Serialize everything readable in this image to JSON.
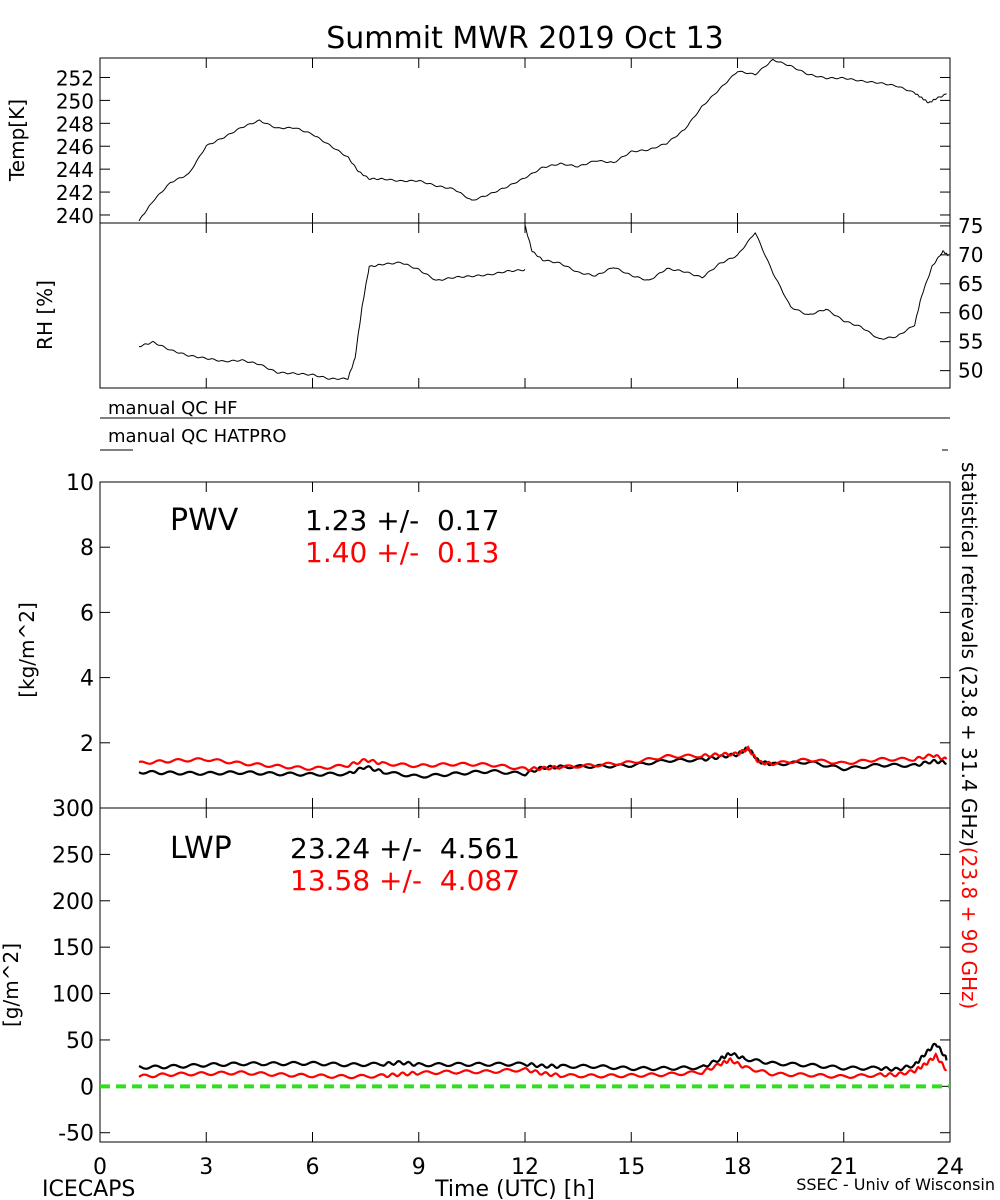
{
  "title": "Summit MWR 2019 Oct 13",
  "footer": {
    "left": "ICECAPS",
    "center": "Time (UTC) [h]",
    "right": "SSEC - Univ of Wisconsin"
  },
  "side_label": {
    "black": "statistical retrievals (23.8 + 31.4 GHz)",
    "red": "(23.8 + 90 GHz)"
  },
  "colors": {
    "primary": "#000000",
    "secondary": "#ff0000",
    "zero_line": "#33dd22"
  },
  "qc": {
    "hf_label": "manual QC HF",
    "hatpro_label": "manual QC HATPRO"
  },
  "chart_data": [
    {
      "id": "temp",
      "type": "line",
      "ylabel": "Temp[K]",
      "xlim": [
        0,
        24
      ],
      "ylim": [
        239.3,
        253.7
      ],
      "yticks": [
        240,
        242,
        244,
        246,
        248,
        250,
        252
      ],
      "x": [
        1.1,
        1.5,
        2.0,
        2.5,
        3.0,
        3.5,
        4.0,
        4.5,
        5.0,
        5.5,
        6.0,
        6.5,
        7.0,
        7.3,
        7.6,
        8.0,
        8.5,
        9.0,
        9.5,
        10.0,
        10.5,
        11.0,
        11.5,
        12.0,
        12.5,
        13.0,
        13.5,
        14.0,
        14.5,
        15.0,
        15.5,
        16.0,
        16.5,
        17.0,
        17.5,
        18.0,
        18.5,
        19.0,
        19.5,
        20.0,
        20.5,
        21.0,
        21.5,
        22.0,
        22.5,
        23.0,
        23.2,
        23.4,
        23.6,
        23.9
      ],
      "y": [
        239.5,
        241.2,
        242.8,
        243.5,
        246.0,
        246.8,
        247.7,
        248.3,
        247.6,
        247.6,
        247.0,
        246.0,
        245.0,
        243.8,
        243.2,
        243.2,
        243.0,
        243.0,
        242.5,
        242.2,
        241.2,
        241.8,
        242.5,
        243.3,
        244.2,
        244.5,
        244.2,
        244.7,
        244.5,
        245.5,
        245.7,
        246.3,
        247.5,
        249.5,
        251.0,
        252.5,
        252.2,
        253.5,
        253.0,
        252.3,
        252.0,
        252.0,
        251.7,
        251.5,
        251.2,
        250.6,
        250.2,
        249.8,
        250.2,
        250.6
      ]
    },
    {
      "id": "rh",
      "type": "line",
      "ylabel": "RH [%]",
      "xlim": [
        0,
        24
      ],
      "ylim": [
        47,
        75.5
      ],
      "yticks": [
        50,
        55,
        60,
        65,
        70,
        75
      ],
      "segments": [
        {
          "x": [
            1.1,
            1.5,
            2.0,
            2.5,
            3.0,
            3.5,
            4.0,
            4.5,
            5.0,
            5.5,
            6.0,
            6.5,
            7.0,
            7.2,
            7.4,
            7.6,
            8.0,
            8.5,
            9.0,
            9.5,
            10.0,
            10.5,
            11.0,
            11.5,
            12.0
          ],
          "y": [
            54.3,
            55.0,
            53.5,
            52.5,
            52.0,
            51.5,
            51.8,
            51.2,
            49.8,
            49.6,
            49.3,
            48.5,
            48.5,
            52.0,
            61.0,
            68.0,
            68.5,
            68.8,
            67.5,
            65.5,
            66.0,
            66.2,
            66.5,
            67.2,
            67.5
          ]
        },
        {
          "x": [
            12.0,
            12.2,
            12.5,
            13.0,
            13.5,
            14.0,
            14.5,
            15.0,
            15.5,
            16.0,
            16.5,
            17.0,
            17.5,
            18.0,
            18.5,
            19.0,
            19.5,
            20.0,
            20.5,
            21.0,
            21.5,
            22.0,
            22.5,
            23.0,
            23.2,
            23.5,
            23.8,
            23.95
          ],
          "y": [
            75.0,
            70.5,
            69.0,
            68.5,
            67.0,
            66.5,
            68.0,
            66.5,
            65.5,
            67.5,
            67.0,
            66.0,
            68.5,
            70.0,
            74.0,
            67.0,
            61.0,
            59.5,
            60.5,
            58.5,
            57.5,
            55.5,
            56.0,
            58.0,
            63.0,
            68.0,
            70.5,
            69.8
          ]
        }
      ]
    },
    {
      "id": "pwv",
      "type": "line",
      "label": "PWV",
      "ylabel": "[kg/m^2]",
      "xlim": [
        0,
        24
      ],
      "ylim": [
        0,
        10
      ],
      "yticks": [
        0,
        2,
        4,
        6,
        8,
        10
      ],
      "stats": [
        {
          "text": "1.23 +/-  0.17",
          "color": "#000000"
        },
        {
          "text": "1.40 +/-  0.13",
          "color": "#ff0000"
        }
      ],
      "series": [
        {
          "color": "#000000",
          "x": [
            1.1,
            2,
            3,
            4,
            5,
            6,
            7,
            7.5,
            8,
            9,
            10,
            11,
            12,
            12.5,
            13,
            14,
            15,
            16,
            17,
            17.5,
            18,
            18.3,
            18.6,
            19,
            20,
            21,
            22,
            23,
            23.5,
            23.9
          ],
          "y": [
            1.15,
            1.1,
            1.05,
            1.05,
            1.0,
            1.0,
            1.05,
            1.3,
            1.15,
            1.0,
            1.05,
            1.1,
            1.0,
            1.2,
            1.25,
            1.3,
            1.35,
            1.5,
            1.5,
            1.55,
            1.6,
            1.8,
            1.4,
            1.35,
            1.45,
            1.25,
            1.35,
            1.3,
            1.4,
            1.35
          ]
        },
        {
          "color": "#ff0000",
          "x": [
            1.1,
            2,
            3,
            4,
            5,
            6,
            7,
            7.5,
            8,
            9,
            10,
            11,
            12,
            12.5,
            13,
            14,
            15,
            16,
            17,
            17.5,
            18,
            18.3,
            18.6,
            19,
            20,
            21,
            22,
            23,
            23.5,
            23.9
          ],
          "y": [
            1.35,
            1.4,
            1.45,
            1.35,
            1.3,
            1.25,
            1.35,
            1.5,
            1.35,
            1.25,
            1.3,
            1.3,
            1.2,
            1.25,
            1.3,
            1.35,
            1.4,
            1.55,
            1.55,
            1.6,
            1.65,
            1.85,
            1.45,
            1.4,
            1.5,
            1.35,
            1.45,
            1.45,
            1.6,
            1.5
          ]
        }
      ]
    },
    {
      "id": "lwp",
      "type": "line",
      "label": "LWP",
      "ylabel": "[g/m^2]",
      "xlim": [
        0,
        24
      ],
      "ylim": [
        -60,
        300
      ],
      "yticks": [
        -50,
        0,
        50,
        100,
        150,
        200,
        250,
        300
      ],
      "xticks": [
        0,
        3,
        6,
        9,
        12,
        15,
        18,
        21,
        24
      ],
      "stats": [
        {
          "text": "23.24 +/-  4.561",
          "color": "#000000"
        },
        {
          "text": "13.58 +/-  4.087",
          "color": "#ff0000"
        }
      ],
      "zero_line": 0,
      "series": [
        {
          "color": "#000000",
          "x": [
            1.1,
            2,
            3,
            4,
            5,
            6,
            7,
            8,
            8.5,
            9,
            10,
            11,
            12,
            12.5,
            13,
            14,
            15,
            16,
            17,
            17.5,
            17.8,
            18.2,
            19,
            20,
            21,
            22,
            22.5,
            23,
            23.3,
            23.6,
            23.9
          ],
          "y": [
            22,
            23,
            24,
            24,
            23,
            23,
            22,
            24,
            27,
            25,
            25,
            24,
            23,
            20,
            20,
            21,
            20,
            21,
            22,
            30,
            35,
            28,
            23,
            22,
            20,
            21,
            20,
            24,
            35,
            45,
            28
          ]
        },
        {
          "color": "#ff0000",
          "x": [
            1.1,
            2,
            3,
            4,
            5,
            6,
            7,
            8,
            8.5,
            9,
            10,
            11,
            12,
            12.5,
            13,
            14,
            15,
            16,
            17,
            17.5,
            17.8,
            18.2,
            19,
            20,
            21,
            22,
            22.5,
            23,
            23.3,
            23.6,
            23.9
          ],
          "y": [
            11,
            12,
            12,
            13,
            12,
            12,
            12,
            13,
            14,
            14,
            14,
            14,
            17,
            14,
            13,
            13,
            13,
            13,
            14,
            22,
            27,
            20,
            14,
            14,
            12,
            13,
            12,
            15,
            22,
            32,
            18
          ]
        }
      ]
    }
  ]
}
